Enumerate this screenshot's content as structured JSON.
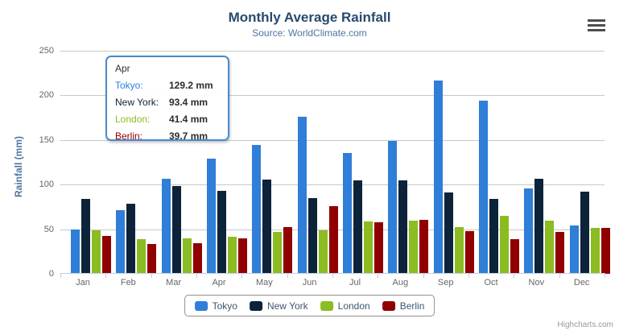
{
  "credits": "Highcharts.com",
  "chart_data": {
    "type": "bar",
    "title": "Monthly Average Rainfall",
    "subtitle": "Source: WorldClimate.com",
    "xlabel": "",
    "ylabel": "Rainfall (mm)",
    "ylim": [
      0,
      250
    ],
    "yticks": [
      0,
      50,
      100,
      150,
      200,
      250
    ],
    "grid": true,
    "legend_position": "bottom",
    "categories": [
      "Jan",
      "Feb",
      "Mar",
      "Apr",
      "May",
      "Jun",
      "Jul",
      "Aug",
      "Sep",
      "Oct",
      "Nov",
      "Dec"
    ],
    "series": [
      {
        "name": "Tokyo",
        "color": "#2f7ed8",
        "values": [
          49.9,
          71.5,
          106.4,
          129.2,
          144.0,
          176.0,
          135.6,
          148.5,
          216.4,
          194.1,
          95.6,
          54.4
        ]
      },
      {
        "name": "New York",
        "color": "#0d233a",
        "values": [
          83.6,
          78.8,
          98.5,
          93.4,
          106.0,
          84.5,
          105.0,
          104.3,
          91.2,
          83.5,
          106.6,
          92.3
        ]
      },
      {
        "name": "London",
        "color": "#8bbc21",
        "values": [
          48.9,
          38.8,
          39.3,
          41.4,
          47.0,
          48.3,
          59.0,
          59.6,
          52.4,
          65.2,
          59.3,
          51.2
        ]
      },
      {
        "name": "Berlin",
        "color": "#910000",
        "values": [
          42.4,
          33.2,
          34.5,
          39.7,
          52.6,
          75.5,
          57.4,
          60.4,
          47.6,
          39.1,
          46.8,
          51.1
        ]
      }
    ]
  },
  "tooltip": {
    "category": "Apr",
    "rows": [
      {
        "label": "Tokyo:",
        "value": "129.2 mm",
        "color": "#2f7ed8"
      },
      {
        "label": "New York:",
        "value": "93.4 mm",
        "color": "#0d233a"
      },
      {
        "label": "London:",
        "value": "41.4 mm",
        "color": "#8bbc21"
      },
      {
        "label": "Berlin:",
        "value": "39.7 mm",
        "color": "#910000"
      }
    ]
  }
}
